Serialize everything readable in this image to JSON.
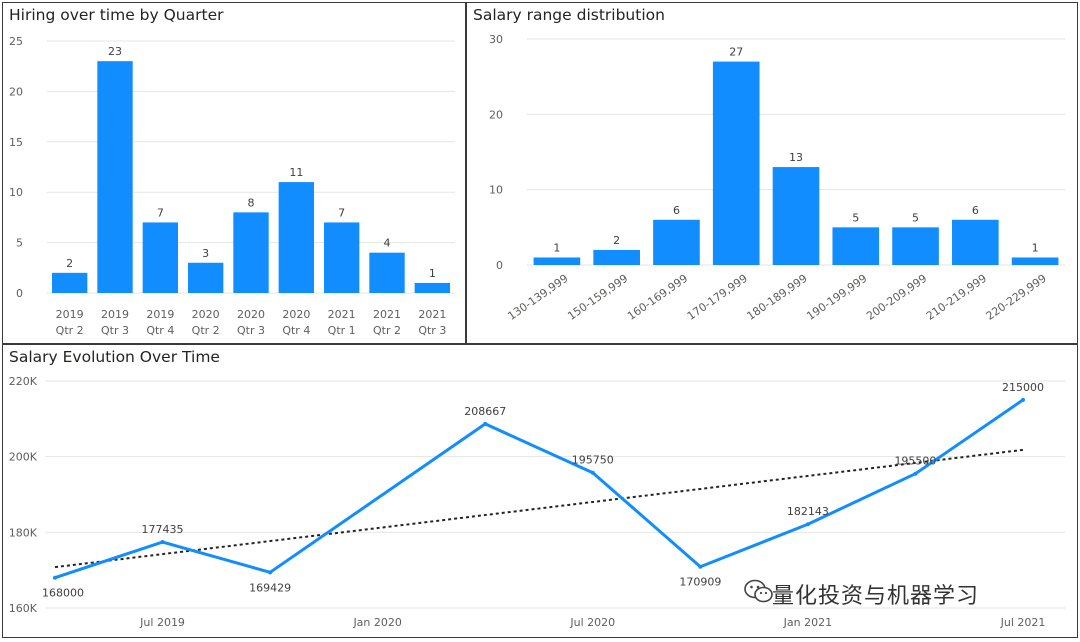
{
  "colors": {
    "bar": "#118DFF",
    "line": "#118DFF",
    "trend": "#252423",
    "axis": "#605e5c"
  },
  "charts": {
    "quarter": {
      "title": "Hiring over time by Quarter"
    },
    "salary_range": {
      "title": "Salary range distribution"
    },
    "evolution": {
      "title": "Salary Evolution Over Time"
    }
  },
  "watermark": {
    "text": "量化投资与机器学习",
    "icon": "wechat-icon"
  },
  "chart_data": [
    {
      "id": "quarter",
      "type": "bar",
      "title": "Hiring over time by Quarter",
      "categories": [
        [
          "2019",
          "Qtr 2"
        ],
        [
          "2019",
          "Qtr 3"
        ],
        [
          "2019",
          "Qtr 4"
        ],
        [
          "2020",
          "Qtr 2"
        ],
        [
          "2020",
          "Qtr 3"
        ],
        [
          "2020",
          "Qtr 4"
        ],
        [
          "2021",
          "Qtr 1"
        ],
        [
          "2021",
          "Qtr 2"
        ],
        [
          "2021",
          "Qtr 3"
        ]
      ],
      "values": [
        2,
        23,
        7,
        3,
        8,
        11,
        7,
        4,
        1
      ],
      "ylim": [
        0,
        25
      ],
      "yticks": [
        0,
        5,
        10,
        15,
        20,
        25
      ],
      "grid": true
    },
    {
      "id": "salary_range",
      "type": "bar",
      "title": "Salary range distribution",
      "categories": [
        "130-139,999",
        "150-159,999",
        "160-169,999",
        "170-179,999",
        "180-189,999",
        "190-199,999",
        "200-209,999",
        "210-219,999",
        "220-229,999"
      ],
      "values": [
        1,
        2,
        6,
        27,
        13,
        5,
        5,
        6,
        1
      ],
      "ylim": [
        0,
        30
      ],
      "yticks": [
        0,
        10,
        20,
        30
      ],
      "grid": true
    },
    {
      "id": "evolution",
      "type": "line",
      "title": "Salary Evolution Over Time",
      "x": [
        "2019-04",
        "2019-07",
        "2019-10",
        "2020-04",
        "2020-07",
        "2020-10",
        "2021-01",
        "2021-04",
        "2021-07"
      ],
      "series": [
        {
          "values": [
            168000,
            177435,
            169429,
            208667,
            195750,
            170909,
            182143,
            195500,
            215000
          ]
        }
      ],
      "data_labels": [
        "168000",
        "177435",
        "169429",
        "208667",
        "195750",
        "170909",
        "182143",
        "195500",
        "215000"
      ],
      "trendline": {
        "start": 170800,
        "end": 201800,
        "style": "dotted"
      },
      "xticks": [
        "Jul 2019",
        "Jan 2020",
        "Jul 2020",
        "Jan 2021",
        "Jul 2021"
      ],
      "ylim": [
        160000,
        220000
      ],
      "yticks": [
        "160K",
        "180K",
        "200K",
        "220K"
      ],
      "grid": true
    }
  ]
}
